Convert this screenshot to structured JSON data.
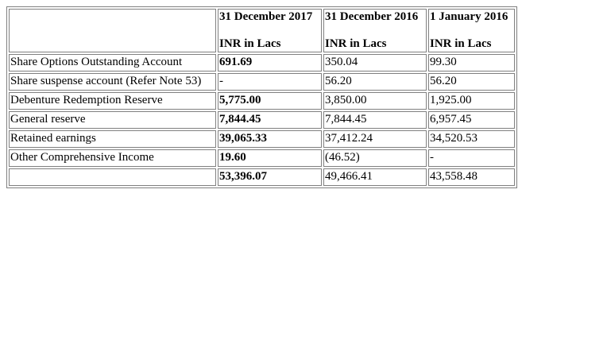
{
  "table": {
    "headers": [
      {
        "date": "",
        "unit": ""
      },
      {
        "date": "31 December 2017",
        "unit": "INR in Lacs"
      },
      {
        "date": "31 December 2016",
        "unit": "INR in Lacs"
      },
      {
        "date": "1 January 2016",
        "unit": "INR in Lacs"
      }
    ],
    "rows": [
      {
        "label": "Share Options Outstanding Account",
        "v2017": "691.69",
        "v2016": "350.04",
        "v2016jan": "99.30"
      },
      {
        "label": "Share suspense account (Refer Note 53)",
        "v2017": "-",
        "v2016": "56.20",
        "v2016jan": "56.20"
      },
      {
        "label": "Debenture Redemption Reserve",
        "v2017": "5,775.00",
        "v2016": "3,850.00",
        "v2016jan": "1,925.00"
      },
      {
        "label": "General reserve",
        "v2017": "7,844.45",
        "v2016": "7,844.45",
        "v2016jan": "6,957.45"
      },
      {
        "label": "Retained earnings",
        "v2017": "39,065.33",
        "v2016": "37,412.24",
        "v2016jan": "34,520.53"
      },
      {
        "label": "Other Comprehensive Income",
        "v2017": "19.60",
        "v2016": "(46.52)",
        "v2016jan": "-"
      },
      {
        "label": "",
        "v2017": "53,396.07",
        "v2016": "49,466.41",
        "v2016jan": "43,558.48"
      }
    ]
  }
}
